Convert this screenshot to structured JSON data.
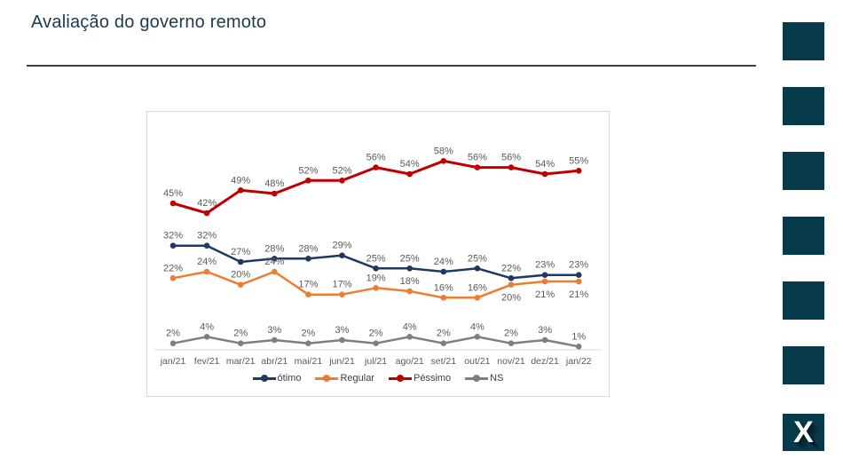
{
  "title": "Avaliação do governo remoto",
  "logo": {
    "letter": "X"
  },
  "decor": {
    "square_count": 6,
    "square_color": "#073b4c"
  },
  "chart_data": {
    "type": "line",
    "title": "",
    "x": [
      "jan/21",
      "fev/21",
      "mar/21",
      "abr/21",
      "mai/21",
      "jun/21",
      "jul/21",
      "ago/21",
      "set/21",
      "out/21",
      "nov/21",
      "dez/21",
      "jan/22"
    ],
    "series": [
      {
        "name": "ótimo",
        "color": "#1f3864",
        "values": [
          32,
          32,
          27,
          28,
          28,
          29,
          25,
          25,
          24,
          25,
          22,
          23,
          23
        ],
        "label_below": []
      },
      {
        "name": "Regular",
        "color": "#ed7d31",
        "values": [
          22,
          24,
          20,
          24,
          17,
          17,
          19,
          18,
          16,
          16,
          20,
          21,
          21
        ],
        "label_below": [
          10,
          11,
          12
        ]
      },
      {
        "name": "Péssimo",
        "color": "#c00000",
        "values": [
          45,
          42,
          49,
          48,
          52,
          52,
          56,
          54,
          58,
          56,
          56,
          54,
          55
        ],
        "label_below": []
      },
      {
        "name": "NS",
        "color": "#7f7f7f",
        "values": [
          2,
          4,
          2,
          3,
          2,
          3,
          2,
          4,
          2,
          4,
          2,
          3,
          1
        ],
        "label_below": []
      }
    ],
    "ylim": [
      0,
      70
    ],
    "grid": false,
    "data_labels": true,
    "legend_position": "bottom",
    "axis_line_color": "#d9d9d9",
    "label_color": "#595959"
  }
}
